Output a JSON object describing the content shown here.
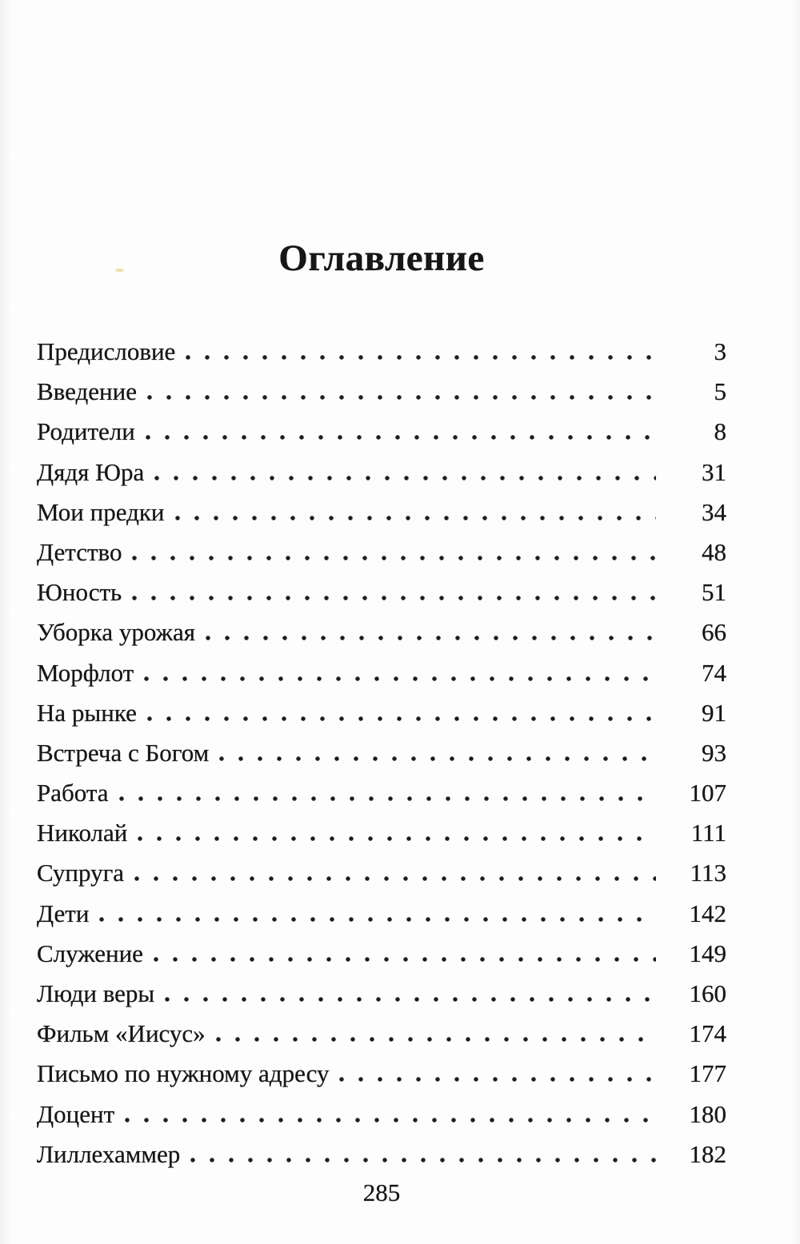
{
  "page": {
    "title": "Оглавление",
    "footer_page_number": "285"
  },
  "colors": {
    "ink": "#161616",
    "paper": "#fdfdfd"
  },
  "toc": {
    "entries": [
      {
        "label": "Предисловие",
        "page": "3"
      },
      {
        "label": "Введение",
        "page": "5"
      },
      {
        "label": "Родители",
        "page": "8"
      },
      {
        "label": "Дядя Юра",
        "page": "31"
      },
      {
        "label": "Мои предки",
        "page": "34"
      },
      {
        "label": "Детство",
        "page": "48"
      },
      {
        "label": "Юность",
        "page": "51"
      },
      {
        "label": "Уборка урожая",
        "page": "66"
      },
      {
        "label": "Морфлот",
        "page": "74"
      },
      {
        "label": "На рынке",
        "page": "91"
      },
      {
        "label": "Встреча с Богом",
        "page": "93"
      },
      {
        "label": "Работа",
        "page": "107"
      },
      {
        "label": "Николай",
        "page": "111"
      },
      {
        "label": "Супруга",
        "page": "113"
      },
      {
        "label": "Дети",
        "page": "142"
      },
      {
        "label": "Служение",
        "page": "149"
      },
      {
        "label": "Люди веры",
        "page": "160"
      },
      {
        "label": "Фильм «Иисус»",
        "page": "174"
      },
      {
        "label": "Письмо по нужному адресу",
        "page": "177"
      },
      {
        "label": "Доцент",
        "page": "180"
      },
      {
        "label": "Лиллехаммер",
        "page": "182"
      }
    ]
  }
}
